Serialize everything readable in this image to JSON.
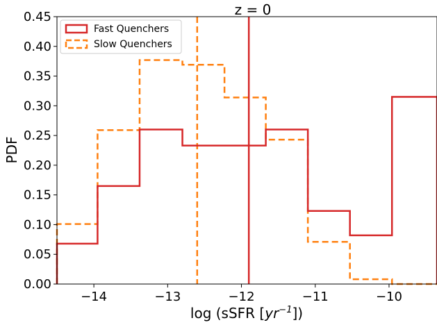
{
  "chart_data": {
    "type": "histogram",
    "title": "z = 0",
    "xlabel_prefix": "log (sSFR [",
    "xlabel_unit": "yr",
    "xlabel_exp": "−1",
    "xlabel_suffix": "])",
    "ylabel": "PDF",
    "xlim": [
      -14.5,
      -9.35
    ],
    "ylim": [
      0,
      0.45
    ],
    "xticks": [
      -14,
      -13,
      -12,
      -11,
      -10
    ],
    "xtick_labels": [
      "−14",
      "−13",
      "−12",
      "−11",
      "−10"
    ],
    "yticks": [
      0,
      0.05,
      0.1,
      0.15,
      0.2,
      0.25,
      0.3,
      0.35,
      0.4,
      0.45
    ],
    "ytick_labels": [
      "0.00",
      "0.05",
      "0.10",
      "0.15",
      "0.20",
      "0.25",
      "0.30",
      "0.35",
      "0.40",
      "0.45"
    ],
    "legend_position": "top-left",
    "series": [
      {
        "name": "Fast Quenchers",
        "color": "#d62728",
        "linestyle": "solid",
        "edges": [
          -14.5,
          -13.95,
          -13.38,
          -12.8,
          -12.23,
          -11.67,
          -11.1,
          -10.53,
          -9.96,
          -9.35
        ],
        "values": [
          0.068,
          0.165,
          0.26,
          0.233,
          0.233,
          0.26,
          0.123,
          0.082,
          0.315
        ],
        "median": -11.9
      },
      {
        "name": "Slow Quenchers",
        "color": "#ff7f0e",
        "linestyle": "dashed",
        "edges": [
          -14.5,
          -13.95,
          -13.38,
          -12.8,
          -12.23,
          -11.67,
          -11.1,
          -10.53,
          -9.96,
          -9.35
        ],
        "values": [
          0.101,
          0.259,
          0.377,
          0.369,
          0.314,
          0.243,
          0.071,
          0.008,
          0.0
        ],
        "median": -12.6
      }
    ]
  }
}
